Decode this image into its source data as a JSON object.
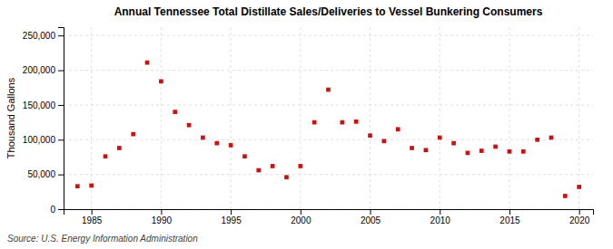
{
  "chart_data": {
    "type": "scatter",
    "title": "Annual Tennessee Total Distillate Sales/Deliveries to Vessel Bunkering Consumers",
    "ylabel": "Thousand Gallons",
    "annotations": [
      "Source: U.S. Energy Information Administration"
    ],
    "x": [
      1984,
      1985,
      1986,
      1987,
      1988,
      1989,
      1990,
      1991,
      1992,
      1993,
      1994,
      1995,
      1996,
      1997,
      1998,
      1999,
      2000,
      2001,
      2002,
      2003,
      2004,
      2005,
      2006,
      2007,
      2008,
      2009,
      2010,
      2011,
      2012,
      2013,
      2014,
      2015,
      2016,
      2017,
      2018,
      2019,
      2020
    ],
    "values": [
      33000,
      34000,
      76000,
      88000,
      108000,
      211000,
      184000,
      140000,
      121000,
      103000,
      95000,
      92000,
      76000,
      56000,
      62000,
      46000,
      62000,
      125000,
      172000,
      125000,
      126000,
      106000,
      98000,
      115000,
      88000,
      85000,
      103000,
      95000,
      81000,
      84000,
      90000,
      83000,
      83000,
      100000,
      103000,
      19000,
      32000
    ],
    "color": "#cc1111",
    "marker": "square",
    "xlim": [
      1983,
      2021
    ],
    "ylim": [
      0,
      262000
    ],
    "xticks": [
      1985,
      1990,
      1995,
      2000,
      2005,
      2010,
      2015,
      2020
    ],
    "yticks": [
      0,
      {
        "value": 50000,
        "label": "50,000"
      },
      {
        "value": 100000,
        "label": "100,000"
      },
      {
        "value": 150000,
        "label": "150,000"
      },
      {
        "value": 200000,
        "label": "200,000"
      },
      {
        "value": 250000,
        "label": "250,000"
      }
    ],
    "grid": true
  }
}
